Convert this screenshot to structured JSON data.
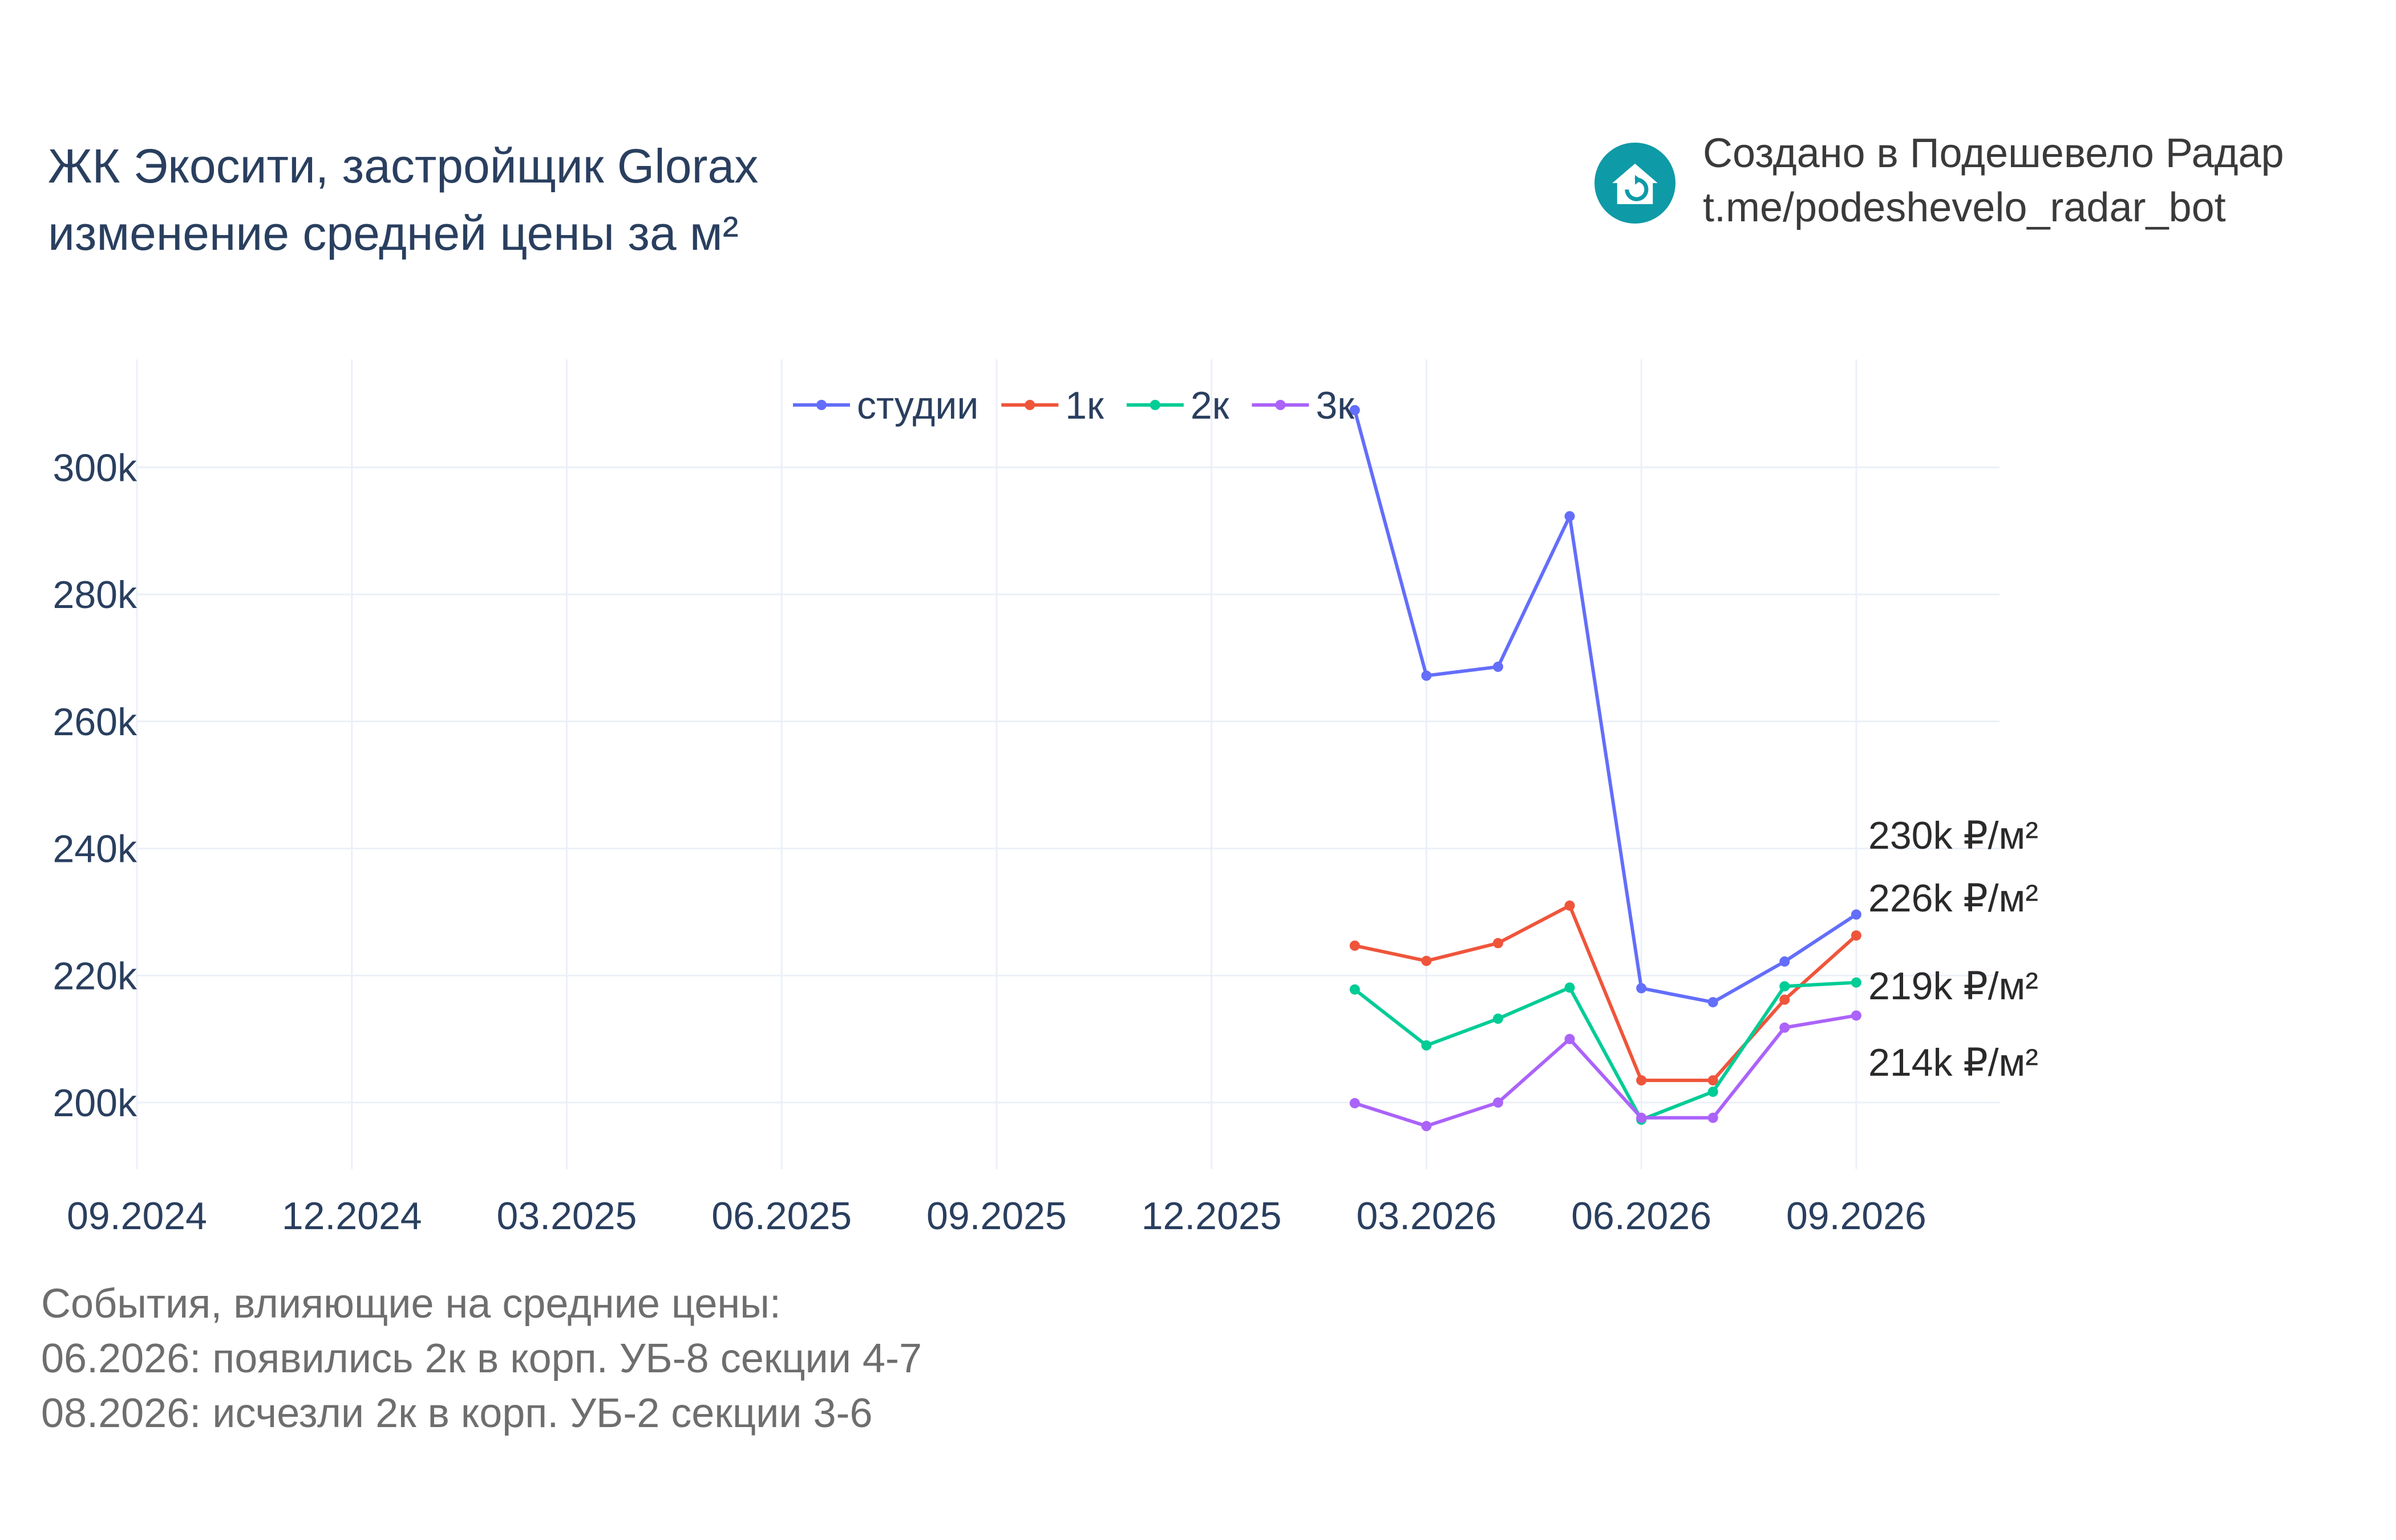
{
  "header": {
    "title_line1": "ЖК Экосити, застройщик Glorax",
    "title_line2": "изменение средней цены за м²"
  },
  "brand": {
    "line1": "Создано в Подешевело Радар",
    "line2": "t.me/podeshevelo_radar_bot",
    "logo_icon": "house-refresh-icon",
    "logo_color": "#0e9aa7"
  },
  "notes": {
    "heading": "События, влияющие на средние цены:",
    "items": [
      "06.2026: появились 2к в корп. УБ-8 секции 4-7",
      "08.2026: исчезли 2к в корп. УБ-2 секции 3-6"
    ]
  },
  "chart_data": {
    "type": "line",
    "title": "ЖК Экосити, застройщик Glorax изменение средней цены за м²",
    "xlabel": "",
    "ylabel": "",
    "x": [
      "2026-02",
      "2026-03",
      "2026-04",
      "2026-05",
      "2026-06",
      "2026-07",
      "2026-08",
      "2026-09"
    ],
    "x_ticks": [
      "09.2024",
      "12.2024",
      "03.2025",
      "06.2025",
      "09.2025",
      "12.2025",
      "03.2026",
      "06.2026",
      "09.2026"
    ],
    "x_range": [
      "2024-09",
      "2026-11"
    ],
    "y_ticks": [
      "200k",
      "220k",
      "240k",
      "260k",
      "280k",
      "300k"
    ],
    "ylim": [
      189500,
      317000
    ],
    "grid": true,
    "legend_position": "top",
    "series": [
      {
        "name": "студии",
        "color": "#636efa",
        "values": [
          309000,
          267200,
          268600,
          292300,
          218000,
          215800,
          222200,
          229600
        ],
        "end_label": "230k ₽/м²"
      },
      {
        "name": "1к",
        "color": "#ef553b",
        "values": [
          224700,
          222300,
          225100,
          231000,
          203500,
          203500,
          216200,
          226300
        ],
        "end_label": "226k ₽/м²"
      },
      {
        "name": "2к",
        "color": "#00cc96",
        "values": [
          217800,
          209000,
          213200,
          218100,
          197300,
          201700,
          218300,
          218900
        ],
        "end_label": "219k ₽/м²"
      },
      {
        "name": "3к",
        "color": "#ab63fa",
        "values": [
          199900,
          196300,
          200000,
          210000,
          197600,
          197600,
          211800,
          213700
        ],
        "end_label": "214k ₽/м²"
      }
    ]
  }
}
